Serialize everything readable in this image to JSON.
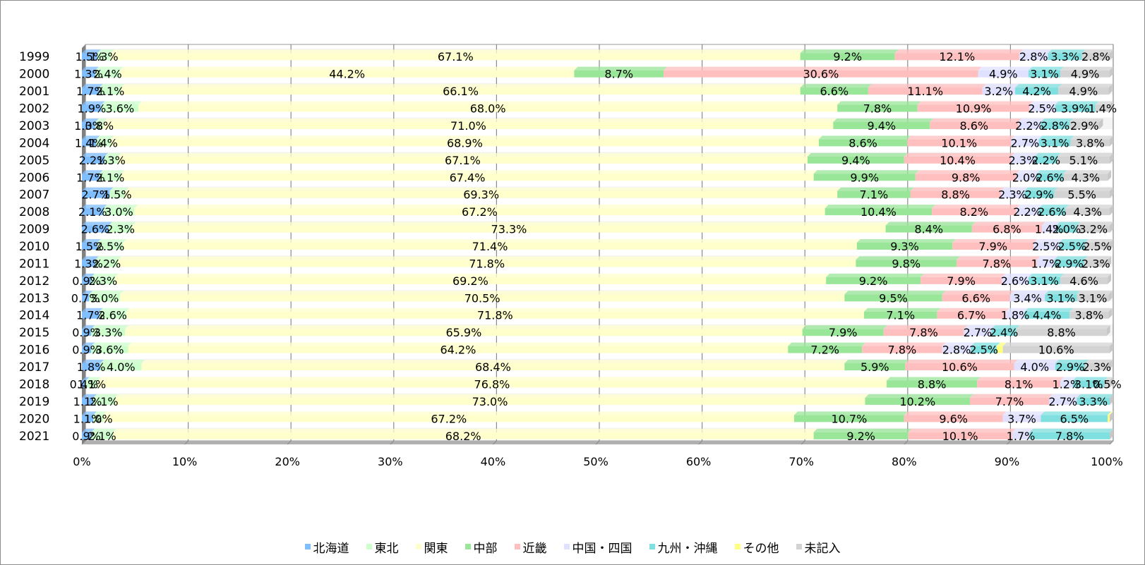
{
  "chart_data": {
    "type": "bar",
    "orientation": "horizontal",
    "stacked": "percent",
    "categories": [
      "1999",
      "2000",
      "2001",
      "2002",
      "2003",
      "2004",
      "2005",
      "2006",
      "2007",
      "2008",
      "2009",
      "2010",
      "2011",
      "2012",
      "2013",
      "2014",
      "2015",
      "2016",
      "2017",
      "2018",
      "2019",
      "2020",
      "2021"
    ],
    "series": [
      {
        "name": "北海道",
        "color": "#80bfff",
        "values": [
          1.5,
          1.3,
          1.7,
          1.9,
          1.3,
          1.4,
          2.2,
          1.7,
          2.7,
          2.1,
          2.6,
          1.5,
          1.3,
          0.9,
          0.7,
          1.7,
          0.9,
          0.9,
          1.8,
          0.4,
          1.1,
          1.1,
          0.9
        ],
        "labels": [
          "1.5%",
          "1.3%",
          "1.7%",
          "1.9%",
          "1.3%",
          "1.4%",
          "2.2%",
          "1.7%",
          "2.7%",
          "2.1%",
          "2.6%",
          "1.5%",
          "1.3%",
          "0.9%",
          "0.7%",
          "1.7%",
          "0.9%",
          "0.9%",
          "1.8%",
          "0.4%",
          "1.1%",
          "1.1%",
          "0.9%"
        ]
      },
      {
        "name": "東北",
        "color": "#ccffcc",
        "values": [
          1.3,
          2.4,
          2.1,
          3.6,
          0.8,
          1.4,
          1.3,
          2.1,
          1.5,
          3.0,
          2.3,
          2.5,
          2.2,
          2.3,
          3.0,
          2.6,
          3.3,
          3.6,
          4.0,
          1.1,
          2.1,
          1.0,
          2.1
        ],
        "labels": [
          "1.3%",
          "2.4%",
          "2.1%",
          "3.6%",
          "0.8%",
          "1.4%",
          "1.3%",
          "2.1%",
          "1.5%",
          "3.0%",
          "2.3%",
          "2.5%",
          "2.2%",
          "2.3%",
          "3.0%",
          "2.6%",
          "3.3%",
          "3.6%",
          "4.0%",
          "1.1%",
          "2.1%",
          "1.0%",
          "2.1%"
        ]
      },
      {
        "name": "関東",
        "color": "#ffffcc",
        "values": [
          67.1,
          44.2,
          66.1,
          68.0,
          71.0,
          68.9,
          67.1,
          67.4,
          69.3,
          67.2,
          73.3,
          71.4,
          71.8,
          69.2,
          70.5,
          71.8,
          65.9,
          64.2,
          68.4,
          76.8,
          73.0,
          67.2,
          68.2
        ],
        "labels": [
          "67.1%",
          "44.2%",
          "66.1%",
          "68.0%",
          "71.0%",
          "68.9%",
          "67.1%",
          "67.4%",
          "69.3%",
          "67.2%",
          "73.3%",
          "71.4%",
          "71.8%",
          "69.2%",
          "70.5%",
          "71.8%",
          "65.9%",
          "64.2%",
          "68.4%",
          "76.8%",
          "73.0%",
          "67.2%",
          "68.2%"
        ]
      },
      {
        "name": "中部",
        "color": "#99e699",
        "values": [
          9.2,
          8.7,
          6.6,
          7.8,
          9.4,
          8.6,
          9.4,
          9.9,
          7.1,
          10.4,
          8.4,
          9.3,
          9.8,
          9.2,
          9.5,
          7.1,
          7.9,
          7.2,
          5.9,
          8.8,
          10.2,
          10.7,
          9.2
        ],
        "labels": [
          "9.2%",
          "8.7%",
          "6.6%",
          "7.8%",
          "9.4%",
          "8.6%",
          "9.4%",
          "9.9%",
          "7.1%",
          "10.4%",
          "8.4%",
          "9.3%",
          "9.8%",
          "9.2%",
          "9.5%",
          "7.1%",
          "7.9%",
          "7.2%",
          "5.9%",
          "8.8%",
          "10.2%",
          "10.7%",
          "9.2%"
        ]
      },
      {
        "name": "近畿",
        "color": "#ffbfbf",
        "values": [
          12.1,
          30.6,
          11.1,
          10.9,
          8.6,
          10.1,
          10.4,
          9.8,
          8.8,
          8.2,
          6.8,
          7.9,
          7.8,
          7.9,
          6.6,
          6.7,
          7.8,
          7.8,
          10.6,
          8.1,
          7.7,
          9.6,
          10.1
        ],
        "labels": [
          "12.1%",
          "30.6%",
          "11.1%",
          "10.9%",
          "8.6%",
          "10.1%",
          "10.4%",
          "9.8%",
          "8.8%",
          "8.2%",
          "6.8%",
          "7.9%",
          "7.8%",
          "7.9%",
          "6.6%",
          "6.7%",
          "7.8%",
          "7.8%",
          "10.6%",
          "8.1%",
          "7.7%",
          "9.6%",
          "10.1%"
        ]
      },
      {
        "name": "中国・四国",
        "color": "#e0e0ff",
        "values": [
          2.8,
          4.9,
          3.2,
          2.5,
          2.2,
          2.7,
          2.3,
          2.0,
          2.3,
          2.2,
          1.4,
          2.5,
          1.7,
          2.6,
          3.4,
          1.8,
          2.7,
          2.8,
          4.0,
          1.2,
          2.7,
          3.7,
          1.7
        ],
        "labels": [
          "2.8%",
          "4.9%",
          "3.2%",
          "2.5%",
          "2.2%",
          "2.7%",
          "2.3%",
          "2.0%",
          "2.3%",
          "2.2%",
          "1.4%",
          "2.5%",
          "1.7%",
          "2.6%",
          "3.4%",
          "1.8%",
          "2.7%",
          "2.8%",
          "4.0%",
          "1.2%",
          "2.7%",
          "3.7%",
          "1.7%"
        ]
      },
      {
        "name": "九州・沖縄",
        "color": "#80e0e0",
        "values": [
          3.3,
          3.1,
          4.2,
          3.9,
          2.8,
          3.1,
          2.2,
          2.6,
          2.9,
          2.6,
          2.0,
          2.5,
          2.9,
          3.1,
          3.1,
          4.4,
          2.4,
          2.5,
          2.9,
          3.1,
          3.3,
          6.5,
          7.8
        ],
        "labels": [
          "3.3%",
          "3.1%",
          "4.2%",
          "3.9%",
          "2.8%",
          "3.1%",
          "2.2%",
          "2.6%",
          "2.9%",
          "2.6%",
          "2.0%",
          "2.5%",
          "2.9%",
          "3.1%",
          "3.1%",
          "4.4%",
          "2.4%",
          "2.5%",
          "2.9%",
          "3.1%",
          "3.3%",
          "6.5%",
          "7.8%"
        ]
      },
      {
        "name": "その他",
        "color": "#ffff80",
        "values": [
          0,
          0,
          0,
          0,
          0,
          0,
          0,
          0,
          0,
          0,
          0,
          0,
          0,
          0,
          0,
          0,
          0,
          0.6,
          0,
          0,
          0,
          0.2,
          0
        ],
        "labels": [
          "",
          "",
          "",
          "",
          "",
          "",
          "",
          "",
          "",
          "",
          "",
          "",
          "",
          "",
          "",
          "",
          "",
          "",
          "",
          "",
          "",
          "",
          ""
        ]
      },
      {
        "name": "未記入",
        "color": "#d3d3d3",
        "values": [
          2.8,
          4.9,
          4.9,
          1.4,
          2.9,
          3.8,
          5.1,
          4.3,
          5.5,
          4.3,
          3.2,
          2.5,
          2.3,
          4.6,
          3.1,
          3.8,
          8.8,
          10.6,
          2.3,
          0.5,
          0,
          0,
          0
        ],
        "labels": [
          "2.8%",
          "4.9%",
          "4.9%",
          "1.4%",
          "2.9%",
          "3.8%",
          "5.1%",
          "4.3%",
          "5.5%",
          "4.3%",
          "3.2%",
          "2.5%",
          "2.3%",
          "4.6%",
          "3.1%",
          "3.8%",
          "8.8%",
          "10.6%",
          "2.3%",
          "0.5%",
          "",
          "",
          ""
        ]
      }
    ],
    "xlim": [
      0,
      100
    ],
    "xticks": [
      "0%",
      "10%",
      "20%",
      "30%",
      "40%",
      "50%",
      "60%",
      "70%",
      "80%",
      "90%",
      "100%"
    ],
    "title": "",
    "xlabel": "",
    "ylabel": "",
    "grid": true,
    "legend_position": "bottom"
  }
}
